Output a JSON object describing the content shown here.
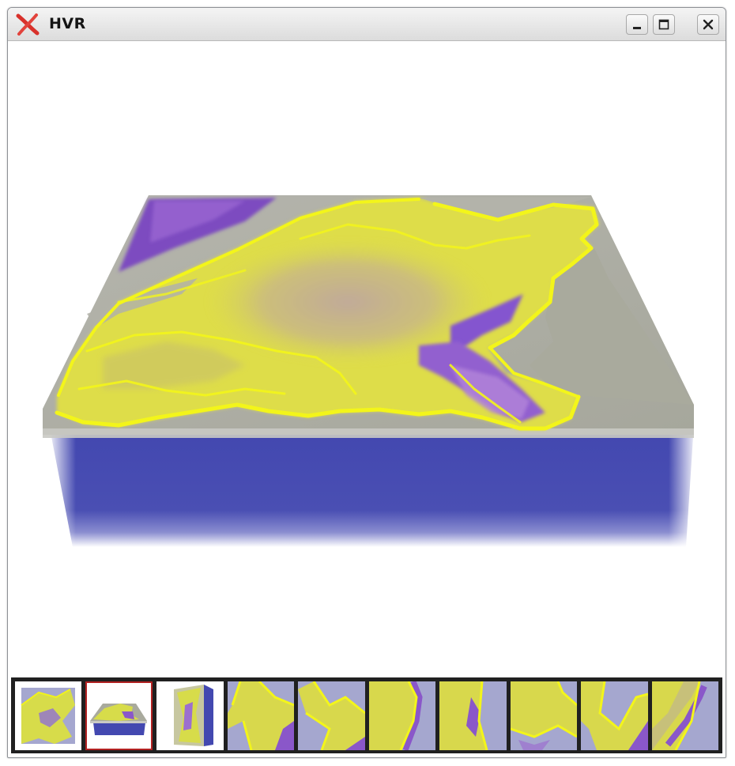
{
  "window": {
    "title": "HVR",
    "app_icon": "x-logo-icon",
    "controls": [
      "minimize-icon",
      "maximize-icon",
      "close-icon"
    ]
  },
  "viewport": {
    "content": "3d-volume-render",
    "colors": {
      "surface_yellow": "#e6e84a",
      "surface_violet": "#8a57c9",
      "surface_gray": "#a9aa9d",
      "volume_blue": "#3f45ad",
      "background": "#ffffff"
    }
  },
  "thumbnails": {
    "count": 10,
    "selected_index": 1,
    "items": [
      {
        "view": "top"
      },
      {
        "view": "oblique"
      },
      {
        "view": "side"
      },
      {
        "view": "slice-1"
      },
      {
        "view": "slice-2"
      },
      {
        "view": "slice-3"
      },
      {
        "view": "slice-4"
      },
      {
        "view": "slice-5"
      },
      {
        "view": "slice-6"
      },
      {
        "view": "slice-7"
      }
    ]
  }
}
